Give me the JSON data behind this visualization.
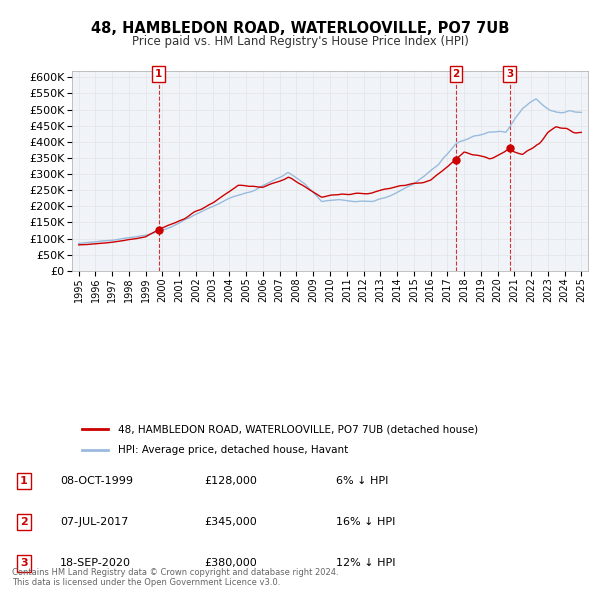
{
  "title": "48, HAMBLEDON ROAD, WATERLOOVILLE, PO7 7UB",
  "subtitle": "Price paid vs. HM Land Registry's House Price Index (HPI)",
  "ytick_values": [
    0,
    50000,
    100000,
    150000,
    200000,
    250000,
    300000,
    350000,
    400000,
    450000,
    500000,
    550000,
    600000
  ],
  "xlim_start": 1994.6,
  "xlim_end": 2025.4,
  "ylim_min": 0,
  "ylim_max": 620000,
  "purchases": [
    {
      "date_num": 1999.77,
      "price": 128000,
      "label": "1"
    },
    {
      "date_num": 2017.52,
      "price": 345000,
      "label": "2"
    },
    {
      "date_num": 2020.72,
      "price": 380000,
      "label": "3"
    }
  ],
  "purchase_color": "#cc0000",
  "hpi_color": "#99bbdd",
  "legend_property_label": "48, HAMBLEDON ROAD, WATERLOOVILLE, PO7 7UB (detached house)",
  "legend_hpi_label": "HPI: Average price, detached house, Havant",
  "table_rows": [
    {
      "num": "1",
      "date": "08-OCT-1999",
      "price": "£128,000",
      "note": "6% ↓ HPI"
    },
    {
      "num": "2",
      "date": "07-JUL-2017",
      "price": "£345,000",
      "note": "16% ↓ HPI"
    },
    {
      "num": "3",
      "date": "18-SEP-2020",
      "price": "£380,000",
      "note": "12% ↓ HPI"
    }
  ],
  "footer": "Contains HM Land Registry data © Crown copyright and database right 2024.\nThis data is licensed under the Open Government Licence v3.0.",
  "background_color": "#ffffff",
  "grid_color": "#e0e0e0"
}
